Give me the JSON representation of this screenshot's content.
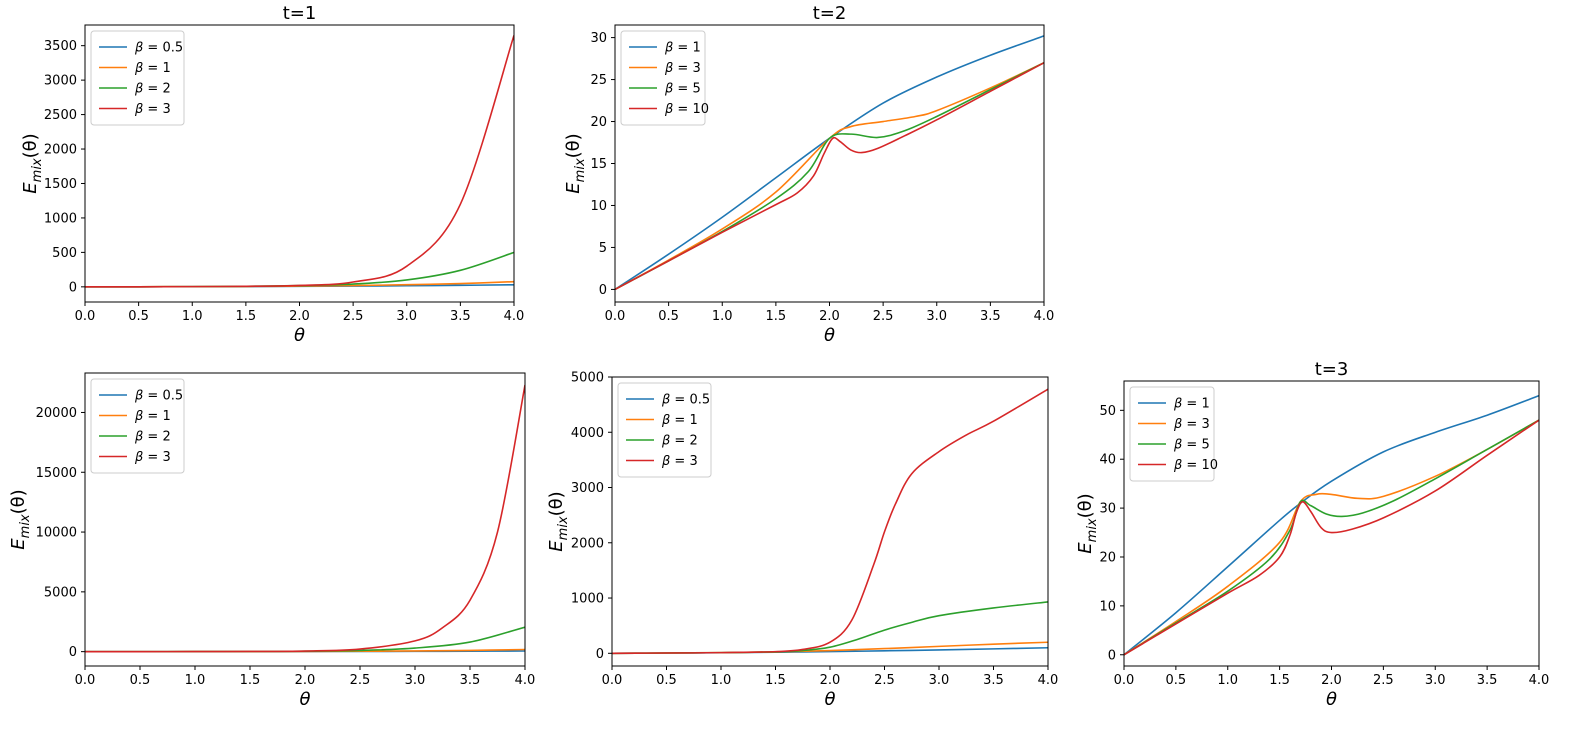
{
  "figure": {
    "description_free": true
  },
  "chart_data": [
    {
      "id": "p1",
      "type": "line",
      "title": "t=1",
      "xlabel": "θ",
      "ylabel_base": "E",
      "ylabel_sub": "mix",
      "ylabel_arg": "(θ)",
      "xlim": [
        0,
        4
      ],
      "ylim": [
        -220,
        3800
      ],
      "xticks": [
        0,
        0.5,
        1,
        1.5,
        2,
        2.5,
        3,
        3.5,
        4
      ],
      "yticks": [
        0,
        500,
        1000,
        1500,
        2000,
        2500,
        3000,
        3500
      ],
      "legend_position": "top-left",
      "legend_symbol": "β",
      "series": [
        {
          "name": "β = 0.5",
          "beta": "0.5",
          "color": "#1f77b4",
          "x": [
            0,
            0.5,
            1,
            1.5,
            2,
            2.5,
            3,
            3.5,
            4
          ],
          "y": [
            0,
            1,
            2,
            4,
            7,
            11,
            16,
            22,
            30
          ]
        },
        {
          "name": "β = 1",
          "beta": "1",
          "color": "#ff7f0e",
          "x": [
            0,
            0.5,
            1,
            1.5,
            2,
            2.5,
            3,
            3.5,
            4
          ],
          "y": [
            0,
            1,
            3,
            6,
            11,
            19,
            31,
            48,
            75
          ]
        },
        {
          "name": "β = 2",
          "beta": "2",
          "color": "#2ca02c",
          "x": [
            0,
            0.5,
            1,
            1.5,
            2,
            2.5,
            3,
            3.5,
            4
          ],
          "y": [
            0,
            1,
            3,
            8,
            18,
            40,
            100,
            240,
            500
          ]
        },
        {
          "name": "β = 3",
          "beta": "3",
          "color": "#d62728",
          "x": [
            0,
            0.5,
            1,
            1.5,
            2,
            2.5,
            3,
            3.5,
            4
          ],
          "y": [
            0,
            1,
            3,
            8,
            20,
            70,
            300,
            1200,
            3650
          ]
        }
      ]
    },
    {
      "id": "p2",
      "type": "line",
      "title": "t=2",
      "xlabel": "θ",
      "ylabel_base": "E",
      "ylabel_sub": "mix",
      "ylabel_arg": "(θ)",
      "xlim": [
        0,
        4
      ],
      "ylim": [
        -1.5,
        31.5
      ],
      "xticks": [
        0,
        0.5,
        1,
        1.5,
        2,
        2.5,
        3,
        3.5,
        4
      ],
      "yticks": [
        0,
        5,
        10,
        15,
        20,
        25,
        30
      ],
      "legend_position": "top-left",
      "legend_symbol": "β",
      "series": [
        {
          "name": "β = 1",
          "beta": "1",
          "color": "#1f77b4",
          "x": [
            0,
            0.5,
            1,
            1.5,
            2,
            2.5,
            3,
            3.5,
            4
          ],
          "y": [
            0,
            4.2,
            8.6,
            13.3,
            18,
            22.2,
            25.3,
            27.9,
            30.2
          ]
        },
        {
          "name": "β = 3",
          "beta": "3",
          "color": "#ff7f0e",
          "x": [
            0,
            0.5,
            1,
            1.5,
            2,
            2.2,
            2.5,
            2.8,
            3,
            3.5,
            4
          ],
          "y": [
            0,
            3.5,
            7.2,
            11.6,
            18,
            19.4,
            20,
            20.6,
            21.3,
            24,
            27
          ]
        },
        {
          "name": "β = 5",
          "beta": "5",
          "color": "#2ca02c",
          "x": [
            0,
            0.5,
            1,
            1.5,
            1.8,
            2,
            2.2,
            2.45,
            2.7,
            3,
            3.5,
            4
          ],
          "y": [
            0,
            3.4,
            6.9,
            10.8,
            14,
            18,
            18.5,
            18.1,
            18.9,
            20.6,
            23.8,
            27
          ]
        },
        {
          "name": "β = 10",
          "beta": "10",
          "color": "#d62728",
          "x": [
            0,
            0.5,
            1,
            1.5,
            1.7,
            1.85,
            1.95,
            2.03,
            2.1,
            2.2,
            2.3,
            2.45,
            2.7,
            3,
            3.5,
            4
          ],
          "y": [
            0,
            3.4,
            6.8,
            10.1,
            11.5,
            13.5,
            16.2,
            18,
            17.6,
            16.6,
            16.3,
            16.8,
            18.3,
            20.2,
            23.6,
            27
          ]
        }
      ]
    },
    {
      "id": "p3",
      "type": "line",
      "title": "",
      "xlabel": "θ",
      "ylabel_base": "E",
      "ylabel_sub": "mix",
      "ylabel_arg": "(θ)",
      "xlim": [
        0,
        4
      ],
      "ylim": [
        -1200,
        23300
      ],
      "xticks": [
        0,
        0.5,
        1,
        1.5,
        2,
        2.5,
        3,
        3.5,
        4
      ],
      "yticks": [
        0,
        5000,
        10000,
        15000,
        20000
      ],
      "legend_position": "top-left",
      "legend_symbol": "β",
      "series": [
        {
          "name": "β = 0.5",
          "beta": "0.5",
          "color": "#1f77b4",
          "x": [
            0,
            0.5,
            1,
            1.5,
            2,
            2.5,
            3,
            3.5,
            4
          ],
          "y": [
            0,
            1,
            3,
            6,
            10,
            16,
            25,
            37,
            55
          ]
        },
        {
          "name": "β = 1",
          "beta": "1",
          "color": "#ff7f0e",
          "x": [
            0,
            0.5,
            1,
            1.5,
            2,
            2.5,
            3,
            3.5,
            4
          ],
          "y": [
            0,
            1,
            4,
            9,
            18,
            33,
            60,
            105,
            180
          ]
        },
        {
          "name": "β = 2",
          "beta": "2",
          "color": "#2ca02c",
          "x": [
            0,
            0.5,
            1,
            1.5,
            2,
            2.5,
            3,
            3.5,
            4
          ],
          "y": [
            0,
            1,
            4,
            12,
            35,
            100,
            300,
            800,
            2050
          ]
        },
        {
          "name": "β = 3",
          "beta": "3",
          "color": "#d62728",
          "x": [
            0,
            0.5,
            1,
            1.5,
            2,
            2.5,
            3,
            3.25,
            3.5,
            3.75,
            4
          ],
          "y": [
            0,
            1,
            4,
            14,
            50,
            220,
            900,
            2000,
            4300,
            10000,
            22300
          ]
        }
      ]
    },
    {
      "id": "p4",
      "type": "line",
      "title": "",
      "xlabel": "θ",
      "ylabel_base": "E",
      "ylabel_sub": "mix",
      "ylabel_arg": "(θ)",
      "xlim": [
        0,
        4
      ],
      "ylim": [
        -230,
        5000
      ],
      "xticks": [
        0,
        0.5,
        1,
        1.5,
        2,
        2.5,
        3,
        3.5,
        4
      ],
      "yticks": [
        0,
        1000,
        2000,
        3000,
        4000,
        5000
      ],
      "legend_position": "top-left",
      "legend_symbol": "β",
      "series": [
        {
          "name": "β = 0.5",
          "beta": "0.5",
          "color": "#1f77b4",
          "x": [
            0,
            0.5,
            1,
            1.5,
            2,
            2.5,
            3,
            3.5,
            4
          ],
          "y": [
            0,
            5,
            10,
            20,
            30,
            45,
            60,
            80,
            100
          ]
        },
        {
          "name": "β = 1",
          "beta": "1",
          "color": "#ff7f0e",
          "x": [
            0,
            0.5,
            1,
            1.5,
            2,
            2.5,
            3,
            3.5,
            4
          ],
          "y": [
            0,
            5,
            12,
            25,
            50,
            85,
            125,
            165,
            200
          ]
        },
        {
          "name": "β = 2",
          "beta": "2",
          "color": "#2ca02c",
          "x": [
            0,
            0.5,
            1,
            1.5,
            1.75,
            2,
            2.25,
            2.5,
            2.75,
            3,
            3.5,
            4
          ],
          "y": [
            0,
            5,
            12,
            25,
            50,
            110,
            250,
            420,
            560,
            680,
            820,
            930
          ]
        },
        {
          "name": "β = 3",
          "beta": "3",
          "color": "#d62728",
          "x": [
            0,
            0.5,
            1,
            1.5,
            1.75,
            2,
            2.2,
            2.4,
            2.5,
            2.6,
            2.75,
            3,
            3.25,
            3.5,
            4
          ],
          "y": [
            0,
            5,
            12,
            30,
            70,
            200,
            600,
            1600,
            2200,
            2700,
            3250,
            3650,
            3950,
            4200,
            4780
          ]
        }
      ]
    },
    {
      "id": "p5",
      "type": "line",
      "title": "t=3",
      "xlabel": "θ",
      "ylabel_base": "E",
      "ylabel_sub": "mix",
      "ylabel_arg": "(θ)",
      "xlim": [
        0,
        4
      ],
      "ylim": [
        -2.3,
        56
      ],
      "xticks": [
        0,
        0.5,
        1,
        1.5,
        2,
        2.5,
        3,
        3.5,
        4
      ],
      "yticks": [
        0,
        10,
        20,
        30,
        40,
        50
      ],
      "legend_position": "top-left",
      "legend_symbol": "β",
      "series": [
        {
          "name": "β = 1",
          "beta": "1",
          "color": "#1f77b4",
          "x": [
            0,
            0.5,
            1,
            1.5,
            1.7,
            2,
            2.5,
            3,
            3.5,
            4
          ],
          "y": [
            0,
            8.6,
            18,
            27.5,
            31,
            35.5,
            41.5,
            45.5,
            49,
            53
          ]
        },
        {
          "name": "β = 3",
          "beta": "3",
          "color": "#ff7f0e",
          "x": [
            0,
            0.5,
            1,
            1.5,
            1.7,
            1.85,
            2,
            2.25,
            2.5,
            3,
            3.5,
            4
          ],
          "y": [
            0,
            6.8,
            14,
            23,
            31.3,
            32.8,
            32.8,
            32,
            32.4,
            36.5,
            42,
            48
          ]
        },
        {
          "name": "β = 5",
          "beta": "5",
          "color": "#2ca02c",
          "x": [
            0,
            0.5,
            1,
            1.4,
            1.6,
            1.7,
            1.8,
            1.95,
            2.1,
            2.3,
            2.6,
            3,
            3.5,
            4
          ],
          "y": [
            0,
            6.5,
            13,
            19.5,
            25.5,
            31.3,
            30.5,
            28.8,
            28.3,
            29,
            31.5,
            36,
            42,
            48
          ]
        },
        {
          "name": "β = 10",
          "beta": "10",
          "color": "#d62728",
          "x": [
            0,
            0.5,
            1,
            1.3,
            1.5,
            1.6,
            1.66,
            1.72,
            1.8,
            1.9,
            2,
            2.2,
            2.5,
            3,
            3.5,
            4
          ],
          "y": [
            0,
            6.3,
            12.6,
            16.2,
            20,
            24.5,
            29,
            31.3,
            29.3,
            26,
            25,
            25.7,
            28,
            33.5,
            40.8,
            48
          ]
        }
      ]
    }
  ]
}
